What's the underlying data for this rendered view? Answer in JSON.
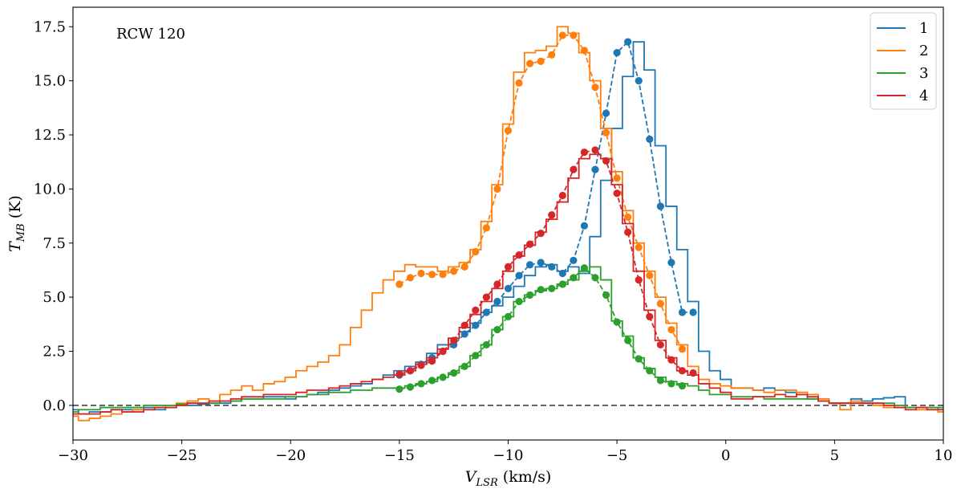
{
  "chart_data": {
    "type": "line",
    "annotation": "RCW 120",
    "xlabel_main": "V",
    "xlabel_sub": "LSR",
    "xlabel_unit": " (km/s)",
    "ylabel_main": "T",
    "ylabel_sub": "MB",
    "ylabel_unit": " (K)",
    "xlim": [
      -30,
      10
    ],
    "ylim": [
      -1.6,
      18.4
    ],
    "xticks": [
      -30,
      -25,
      -20,
      -15,
      -10,
      -5,
      0,
      5,
      10
    ],
    "xtick_labels": [
      "−30",
      "−25",
      "−20",
      "−15",
      "−10",
      "−5",
      "0",
      "5",
      "10"
    ],
    "yticks": [
      0,
      2.5,
      5,
      7.5,
      10,
      12.5,
      15,
      17.5
    ],
    "ytick_labels": [
      "0.0",
      "2.5",
      "5.0",
      "7.5",
      "10.0",
      "12.5",
      "15.0",
      "17.5"
    ],
    "zero_line": 0,
    "legend_position": "top-right",
    "series": [
      {
        "name": "1",
        "color": "#1f77b4",
        "step_x": [
          -30,
          -29.5,
          -29,
          -28.5,
          -28,
          -27.5,
          -27,
          -26.5,
          -26,
          -25.5,
          -25,
          -24.5,
          -24,
          -23.5,
          -23,
          -22.5,
          -22,
          -21.5,
          -21,
          -20.5,
          -20,
          -19.5,
          -19,
          -18.5,
          -18,
          -17.5,
          -17,
          -16.5,
          -16,
          -15.5,
          -15,
          -14.5,
          -14,
          -13.5,
          -13,
          -12.5,
          -12,
          -11.5,
          -11,
          -10.5,
          -10,
          -9.5,
          -9,
          -8.5,
          -8,
          -7.5,
          -7,
          -6.5,
          -6,
          -5.5,
          -5,
          -4.5,
          -4,
          -3.5,
          -3,
          -2.5,
          -2,
          -1.5,
          -1,
          -0.5,
          0,
          0.5,
          1,
          1.5,
          2,
          2.5,
          3,
          3.5,
          4,
          4.5,
          5,
          5.5,
          6,
          6.5,
          7,
          7.5,
          8,
          8.5,
          9,
          9.5,
          10
        ],
        "step_y": [
          -0.2,
          -0.4,
          -0.3,
          -0.3,
          -0.2,
          -0.2,
          -0.2,
          -0.1,
          -0.2,
          -0.1,
          0.0,
          0.0,
          0.05,
          0.1,
          0.1,
          0.2,
          0.3,
          0.3,
          0.4,
          0.4,
          0.3,
          0.4,
          0.5,
          0.6,
          0.7,
          0.8,
          0.9,
          1.0,
          1.2,
          1.4,
          1.6,
          1.8,
          2.0,
          2.4,
          2.8,
          3.1,
          3.4,
          3.8,
          4.3,
          4.6,
          5.0,
          5.5,
          6.0,
          6.4,
          6.5,
          6.2,
          6.4,
          6.1,
          7.8,
          10.4,
          12.8,
          15.2,
          16.8,
          15.5,
          12.0,
          9.2,
          7.2,
          4.8,
          2.5,
          1.6,
          1.2,
          0.8,
          0.8,
          0.7,
          0.8,
          0.7,
          0.6,
          0.5,
          0.3,
          0.2,
          0.1,
          0.1,
          0.3,
          0.2,
          0.3,
          0.35,
          0.4,
          -0.1,
          -0.1,
          -0.1,
          -0.2
        ],
        "fit_x": [
          -15,
          -14.5,
          -14,
          -13.5,
          -13,
          -12.5,
          -12,
          -11.5,
          -11,
          -10.5,
          -10,
          -9.5,
          -9,
          -8.5,
          -8,
          -7.5,
          -7,
          -6.5,
          -6,
          -5.5,
          -5,
          -4.5,
          -4,
          -3.5,
          -3,
          -2.5,
          -2,
          -1.5
        ],
        "fit_y": [
          1.4,
          1.6,
          1.9,
          2.2,
          2.5,
          2.8,
          3.3,
          3.7,
          4.3,
          4.8,
          5.4,
          6.0,
          6.5,
          6.6,
          6.4,
          6.1,
          6.7,
          8.3,
          10.9,
          13.5,
          16.3,
          16.8,
          15.0,
          12.3,
          9.2,
          6.6,
          4.3,
          4.3
        ]
      },
      {
        "name": "2",
        "color": "#ff7f0e",
        "step_x": [
          -30,
          -29.5,
          -29,
          -28.5,
          -28,
          -27.5,
          -27,
          -26.5,
          -26,
          -25.5,
          -25,
          -24.5,
          -24,
          -23.5,
          -23,
          -22.5,
          -22,
          -21.5,
          -21,
          -20.5,
          -20,
          -19.5,
          -19,
          -18.5,
          -18,
          -17.5,
          -17,
          -16.5,
          -16,
          -15.5,
          -15,
          -14.5,
          -14,
          -13.5,
          -13,
          -12.5,
          -12,
          -11.5,
          -11,
          -10.5,
          -10,
          -9.5,
          -9,
          -8.5,
          -8,
          -7.5,
          -7,
          -6.5,
          -6,
          -5.5,
          -5,
          -4.5,
          -4,
          -3.5,
          -3,
          -2.5,
          -2,
          -1.5,
          -1,
          -0.5,
          0,
          0.5,
          1,
          1.5,
          2,
          2.5,
          3,
          3.5,
          4,
          4.5,
          5,
          5.5,
          6,
          6.5,
          7,
          7.5,
          8,
          8.5,
          9,
          9.5,
          10
        ],
        "step_y": [
          -0.5,
          -0.7,
          -0.6,
          -0.5,
          -0.4,
          -0.3,
          -0.2,
          -0.2,
          -0.1,
          0.0,
          0.1,
          0.2,
          0.3,
          0.2,
          0.5,
          0.7,
          0.9,
          0.7,
          1.0,
          1.1,
          1.3,
          1.6,
          1.8,
          2.0,
          2.3,
          2.8,
          3.6,
          4.4,
          5.2,
          5.8,
          6.2,
          6.5,
          6.4,
          6.4,
          6.2,
          6.4,
          6.6,
          7.2,
          8.5,
          10.2,
          13.0,
          15.4,
          16.3,
          16.4,
          16.6,
          17.5,
          17.2,
          16.3,
          15.0,
          12.8,
          10.8,
          9.0,
          7.5,
          6.2,
          5.0,
          3.8,
          2.8,
          1.8,
          1.2,
          1.0,
          0.9,
          0.8,
          0.8,
          0.7,
          0.6,
          0.7,
          0.7,
          0.6,
          0.5,
          0.3,
          0.1,
          -0.2,
          0.2,
          0.1,
          0.0,
          -0.1,
          -0.1,
          -0.1,
          -0.2,
          -0.2,
          -0.3
        ],
        "fit_x": [
          -15,
          -14.5,
          -14,
          -13.5,
          -13,
          -12.5,
          -12,
          -11.5,
          -11,
          -10.5,
          -10,
          -9.5,
          -9,
          -8.5,
          -8,
          -7.5,
          -7,
          -6.5,
          -6,
          -5.5,
          -5,
          -4.5,
          -4,
          -3.5,
          -3,
          -2.5,
          -2
        ],
        "fit_y": [
          5.6,
          5.9,
          6.1,
          6.05,
          6.05,
          6.2,
          6.4,
          7.1,
          8.2,
          10.0,
          12.7,
          14.9,
          15.8,
          15.9,
          16.2,
          17.1,
          17.1,
          16.4,
          14.7,
          12.6,
          10.5,
          8.7,
          7.3,
          6.0,
          4.7,
          3.5,
          2.6
        ]
      },
      {
        "name": "3",
        "color": "#2ca02c",
        "step_x": [
          -30,
          -29.5,
          -29,
          -28.5,
          -28,
          -27.5,
          -27,
          -26.5,
          -26,
          -25.5,
          -25,
          -24.5,
          -24,
          -23.5,
          -23,
          -22.5,
          -22,
          -21.5,
          -21,
          -20.5,
          -20,
          -19.5,
          -19,
          -18.5,
          -18,
          -17.5,
          -17,
          -16.5,
          -16,
          -15.5,
          -15,
          -14.5,
          -14,
          -13.5,
          -13,
          -12.5,
          -12,
          -11.5,
          -11,
          -10.5,
          -10,
          -9.5,
          -9,
          -8.5,
          -8,
          -7.5,
          -7,
          -6.5,
          -6,
          -5.5,
          -5,
          -4.5,
          -4,
          -3.5,
          -3,
          -2.5,
          -2,
          -1.5,
          -1,
          -0.5,
          0,
          0.5,
          1,
          1.5,
          2,
          2.5,
          3,
          3.5,
          4,
          4.5,
          5,
          5.5,
          6,
          6.5,
          7,
          7.5,
          8,
          8.5,
          9,
          9.5,
          10
        ],
        "step_y": [
          -0.3,
          -0.2,
          -0.2,
          -0.1,
          -0.1,
          -0.1,
          -0.1,
          0.0,
          0.0,
          0.0,
          0.05,
          0.1,
          0.1,
          0.1,
          0.2,
          0.2,
          0.3,
          0.3,
          0.3,
          0.3,
          0.4,
          0.4,
          0.5,
          0.5,
          0.6,
          0.6,
          0.7,
          0.7,
          0.8,
          0.8,
          0.8,
          0.9,
          1.0,
          1.1,
          1.3,
          1.5,
          1.8,
          2.3,
          2.8,
          3.5,
          4.1,
          4.8,
          5.1,
          5.3,
          5.4,
          5.6,
          5.8,
          6.2,
          6.4,
          5.8,
          3.9,
          3.2,
          2.2,
          1.7,
          1.3,
          1.1,
          1.0,
          0.9,
          0.7,
          0.5,
          0.5,
          0.4,
          0.4,
          0.4,
          0.3,
          0.3,
          0.3,
          0.3,
          0.3,
          0.2,
          0.1,
          0.1,
          0.1,
          0.1,
          0.1,
          0.1,
          0.0,
          -0.1,
          -0.1,
          -0.1,
          -0.1
        ],
        "fit_x": [
          -15,
          -14.5,
          -14,
          -13.5,
          -13,
          -12.5,
          -12,
          -11.5,
          -11,
          -10.5,
          -10,
          -9.5,
          -9,
          -8.5,
          -8,
          -7.5,
          -7,
          -6.5,
          -6,
          -5.5,
          -5,
          -4.5,
          -4,
          -3.5,
          -3,
          -2.5,
          -2
        ],
        "fit_y": [
          0.75,
          0.85,
          1.0,
          1.15,
          1.3,
          1.5,
          1.8,
          2.3,
          2.8,
          3.5,
          4.1,
          4.8,
          5.1,
          5.35,
          5.4,
          5.6,
          5.9,
          6.35,
          5.9,
          5.1,
          3.85,
          3.0,
          2.15,
          1.6,
          1.15,
          1.0,
          0.9
        ]
      },
      {
        "name": "4",
        "color": "#d62728",
        "step_x": [
          -30,
          -29.5,
          -29,
          -28.5,
          -28,
          -27.5,
          -27,
          -26.5,
          -26,
          -25.5,
          -25,
          -24.5,
          -24,
          -23.5,
          -23,
          -22.5,
          -22,
          -21.5,
          -21,
          -20.5,
          -20,
          -19.5,
          -19,
          -18.5,
          -18,
          -17.5,
          -17,
          -16.5,
          -16,
          -15.5,
          -15,
          -14.5,
          -14,
          -13.5,
          -13,
          -12.5,
          -12,
          -11.5,
          -11,
          -10.5,
          -10,
          -9.5,
          -9,
          -8.5,
          -8,
          -7.5,
          -7,
          -6.5,
          -6,
          -5.5,
          -5,
          -4.5,
          -4,
          -3.5,
          -3,
          -2.5,
          -2,
          -1.5,
          -1,
          -0.5,
          0,
          0.5,
          1,
          1.5,
          2,
          2.5,
          3,
          3.5,
          4,
          4.5,
          5,
          5.5,
          6,
          6.5,
          7,
          7.5,
          8,
          8.5,
          9,
          9.5,
          10
        ],
        "step_y": [
          -0.4,
          -0.4,
          -0.4,
          -0.3,
          -0.2,
          -0.3,
          -0.3,
          -0.2,
          -0.1,
          -0.1,
          0.0,
          0.1,
          0.1,
          0.2,
          0.2,
          0.3,
          0.4,
          0.4,
          0.5,
          0.5,
          0.5,
          0.6,
          0.7,
          0.7,
          0.8,
          0.9,
          1.0,
          1.1,
          1.2,
          1.3,
          1.4,
          1.6,
          1.9,
          2.2,
          2.6,
          3.1,
          3.6,
          4.2,
          4.8,
          5.4,
          6.2,
          6.9,
          7.4,
          8.0,
          8.6,
          9.4,
          10.5,
          11.4,
          11.6,
          11.4,
          10.2,
          8.4,
          6.2,
          4.4,
          3.0,
          2.2,
          1.6,
          1.4,
          1.0,
          0.8,
          0.6,
          0.3,
          0.3,
          0.4,
          0.4,
          0.5,
          0.4,
          0.5,
          0.4,
          0.2,
          0.1,
          0.1,
          0.1,
          0.1,
          0.1,
          0.0,
          -0.1,
          -0.2,
          -0.1,
          -0.2,
          -0.2
        ],
        "fit_x": [
          -15,
          -14.5,
          -14,
          -13.5,
          -13,
          -12.5,
          -12,
          -11.5,
          -11,
          -10.5,
          -10,
          -9.5,
          -9,
          -8.5,
          -8,
          -7.5,
          -7,
          -6.5,
          -6,
          -5.5,
          -5,
          -4.5,
          -4,
          -3.5,
          -3,
          -2.5,
          -2,
          -1.5
        ],
        "fit_y": [
          1.45,
          1.6,
          1.85,
          2.05,
          2.5,
          3.0,
          3.7,
          4.4,
          5.0,
          5.6,
          6.4,
          6.95,
          7.45,
          7.95,
          8.8,
          9.7,
          10.9,
          11.7,
          11.8,
          11.3,
          9.8,
          8.0,
          5.8,
          4.1,
          2.8,
          2.1,
          1.6,
          1.5
        ]
      }
    ]
  }
}
